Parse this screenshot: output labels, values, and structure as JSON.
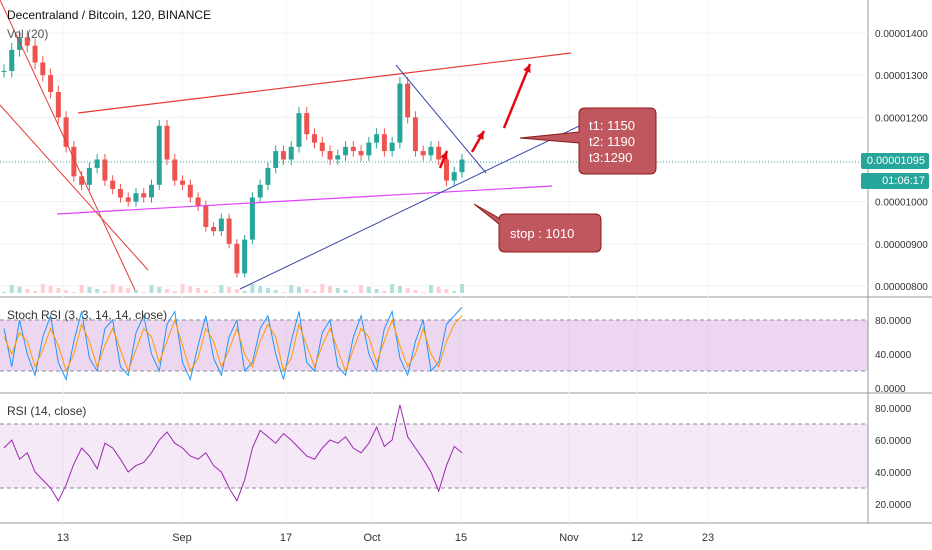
{
  "header": {
    "title": "Decentraland / Bitcoin, 120, BINANCE",
    "indicator": "Vol (20)"
  },
  "price_badges": {
    "last_price": "0.00001095",
    "countdown": "01:06:17",
    "color": "#26a69a"
  },
  "annotations": {
    "targets": [
      "t1: 1150",
      "t2: 1190",
      "t3:1290"
    ],
    "stop": "stop : 1010",
    "box_fill": "#c0575f"
  },
  "chart_data": [
    {
      "type": "candlestick",
      "pane": "price",
      "title": "Decentraland / Bitcoin, 120, BINANCE",
      "x_ticks": [
        "13",
        "Sep",
        "17",
        "Oct",
        "15",
        "Nov",
        "12",
        "23"
      ],
      "y_ticks": [
        "0.00001400",
        "0.00001300",
        "0.00001200",
        "0.00001000",
        "0.00000900",
        "0.00000800"
      ],
      "ylim": [
        7.8e-06,
        1.46e-05
      ],
      "close_series": [
        1.31e-05,
        1.36e-05,
        1.39e-05,
        1.37e-05,
        1.33e-05,
        1.3e-05,
        1.26e-05,
        1.2e-05,
        1.13e-05,
        1.06e-05,
        1.04e-05,
        1.08e-05,
        1.1e-05,
        1.05e-05,
        1.03e-05,
        1.01e-05,
        1e-05,
        1.02e-05,
        1.01e-05,
        1.04e-05,
        1.18e-05,
        1.1e-05,
        1.05e-05,
        1.04e-05,
        1.01e-05,
        9.9e-06,
        9.4e-06,
        9.3e-06,
        9.6e-06,
        9e-06,
        8.3e-06,
        9.1e-06,
        1.01e-05,
        1.04e-05,
        1.08e-05,
        1.12e-05,
        1.1e-05,
        1.13e-05,
        1.21e-05,
        1.16e-05,
        1.14e-05,
        1.12e-05,
        1.1e-05,
        1.11e-05,
        1.13e-05,
        1.12e-05,
        1.11e-05,
        1.14e-05,
        1.16e-05,
        1.12e-05,
        1.14e-05,
        1.28e-05,
        1.2e-05,
        1.12e-05,
        1.11e-05,
        1.13e-05,
        1.1e-05,
        1.05e-05,
        1.07e-05,
        1.1e-05
      ],
      "trendlines": [
        {
          "name": "resistance",
          "color": "#e53935"
        },
        {
          "name": "support",
          "color": "#e040fb"
        },
        {
          "name": "rising",
          "color": "#3949ab"
        },
        {
          "name": "falling",
          "color": "#3949ab"
        },
        {
          "name": "channel",
          "color": "#e53935"
        }
      ]
    },
    {
      "type": "line",
      "pane": "stoch",
      "title": "Stoch RSI (3, 3, 14, 14, close)",
      "y_ticks": [
        "80.0000",
        "40.0000",
        "0.0000"
      ],
      "ylim": [
        0,
        100
      ],
      "band": [
        20,
        80
      ],
      "series": [
        {
          "color": "#2196f3",
          "values": [
            70,
            25,
            80,
            40,
            15,
            60,
            85,
            30,
            10,
            55,
            90,
            35,
            20,
            70,
            80,
            25,
            15,
            65,
            85,
            40,
            20,
            75,
            90,
            30,
            10,
            50,
            85,
            35,
            15,
            60,
            80,
            20,
            30,
            70,
            85,
            40,
            10,
            55,
            90,
            30,
            20,
            65,
            80,
            25,
            15,
            60,
            85,
            40,
            20,
            70,
            90,
            35,
            15,
            55,
            80,
            20,
            30,
            75,
            85,
            95
          ]
        },
        {
          "color": "#ff9800",
          "values": [
            60,
            40,
            65,
            55,
            25,
            45,
            70,
            50,
            20,
            40,
            75,
            55,
            25,
            50,
            70,
            45,
            20,
            45,
            70,
            60,
            30,
            55,
            80,
            50,
            20,
            35,
            70,
            55,
            25,
            45,
            70,
            40,
            25,
            55,
            75,
            60,
            20,
            35,
            75,
            50,
            25,
            50,
            70,
            45,
            20,
            45,
            70,
            60,
            30,
            55,
            80,
            50,
            25,
            40,
            70,
            40,
            25,
            55,
            75,
            85
          ]
        }
      ]
    },
    {
      "type": "line",
      "pane": "rsi",
      "title": "RSI (14, close)",
      "y_ticks": [
        "80.0000",
        "60.0000",
        "40.0000",
        "20.0000"
      ],
      "ylim": [
        10,
        85
      ],
      "band": [
        30,
        70
      ],
      "series": [
        {
          "color": "#9c27b0",
          "values": [
            55,
            60,
            48,
            52,
            40,
            35,
            30,
            22,
            32,
            45,
            55,
            50,
            42,
            58,
            55,
            48,
            40,
            44,
            46,
            52,
            60,
            65,
            58,
            55,
            50,
            48,
            52,
            44,
            40,
            30,
            22,
            35,
            55,
            66,
            62,
            58,
            64,
            60,
            55,
            50,
            48,
            55,
            60,
            58,
            62,
            55,
            52,
            58,
            68,
            56,
            60,
            82,
            62,
            55,
            48,
            40,
            28,
            44,
            56,
            52
          ]
        }
      ]
    }
  ]
}
